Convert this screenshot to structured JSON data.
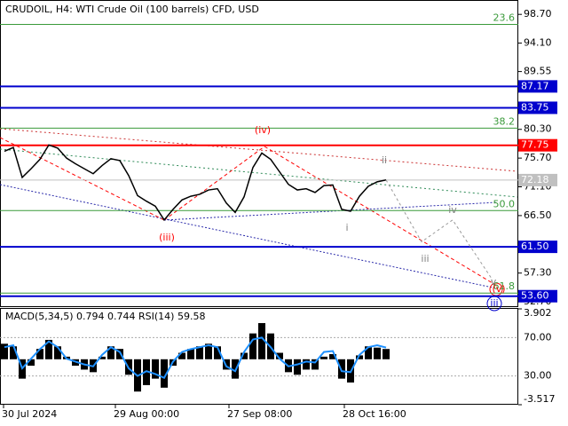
{
  "chart_data": {
    "type": "line",
    "title": "CRUDOIL, H4:  WTI Crude Oil (100 barrels) CFD, USD",
    "values": [
      76.8,
      77.4,
      72.6,
      74.0,
      75.5,
      77.8,
      77.3,
      75.7,
      74.8,
      74.0,
      73.2,
      74.5,
      75.6,
      75.3,
      72.9,
      69.7,
      68.8,
      68.0,
      65.8,
      67.5,
      69.0,
      69.6,
      69.9,
      70.6,
      70.8,
      68.5,
      67.0,
      69.5,
      74.2,
      76.5,
      75.5,
      73.5,
      71.5,
      70.6,
      70.8,
      70.2,
      71.3,
      71.4,
      67.5,
      67.2,
      69.6,
      71.2,
      71.9,
      72.2
    ],
    "color": "#000000",
    "projection": {
      "values": [
        72.2,
        62.3,
        65.8,
        56.2
      ],
      "color": "#999999"
    },
    "ylim": [
      52.0,
      101.0
    ],
    "yticks": [
      {
        "value": 98.7,
        "label": "98.70"
      },
      {
        "value": 94.1,
        "label": "94.10"
      },
      {
        "value": 89.55,
        "label": "89.55"
      },
      {
        "value": 80.3,
        "label": "80.30"
      },
      {
        "value": 75.7,
        "label": "75.70"
      },
      {
        "value": 71.1,
        "label": "71.10"
      },
      {
        "value": 66.5,
        "label": "66.50"
      },
      {
        "value": 57.3,
        "label": "57.30"
      },
      {
        "value": 52.7,
        "label": "52.70"
      }
    ],
    "levels": [
      {
        "value": 87.17,
        "label": "87.17",
        "color": "#0000cd"
      },
      {
        "value": 83.75,
        "label": "83.75",
        "color": "#0000cd"
      },
      {
        "value": 77.75,
        "label": "77.75",
        "color": "#ff0000"
      },
      {
        "value": 72.18,
        "label": "72.18",
        "color": "#c0c0c0"
      },
      {
        "value": 61.5,
        "label": "61.50",
        "color": "#0000cd"
      },
      {
        "value": 53.6,
        "label": "53.60",
        "color": "#0000cd"
      }
    ],
    "fib_levels": [
      {
        "ratio": "23.6",
        "price": 97.1
      },
      {
        "ratio": "38.2",
        "price": 80.5
      },
      {
        "ratio": "50.0",
        "price": 67.3
      },
      {
        "ratio": "61.8",
        "price": 54.1
      }
    ],
    "fib_color": "#3a9a3a",
    "annotations": [
      {
        "text": "(iv)",
        "color": "#ff0000"
      },
      {
        "text": "(iii)",
        "color": "#ff0000"
      },
      {
        "text": "ii",
        "color": "#808080"
      },
      {
        "text": "i",
        "color": "#808080"
      },
      {
        "text": "iv",
        "color": "#808080"
      },
      {
        "text": "iii",
        "color": "#808080"
      },
      {
        "text": "v",
        "color": "#808080"
      },
      {
        "text": "(v)",
        "color": "#ff0000"
      },
      {
        "text": "iii",
        "color": "#0000cd"
      }
    ],
    "x_labels": [
      "30 Jul 2024",
      "29 Aug 00:00",
      "27 Sep 08:00",
      "28 Oct 16:00"
    ],
    "indicator": {
      "label": "MACD(5,34,5) 0.794 0.744 RSI(14) 59.58",
      "macd": {
        "values": [
          1.2,
          1.0,
          -1.5,
          -0.5,
          0.8,
          1.5,
          1.0,
          0.2,
          -0.5,
          -0.8,
          -1.0,
          0.2,
          1.0,
          0.8,
          -1.2,
          -2.5,
          -2.0,
          -1.5,
          -2.2,
          -0.5,
          0.5,
          0.8,
          1.0,
          1.2,
          1.0,
          -0.8,
          -1.5,
          0.5,
          2.0,
          2.8,
          2.0,
          0.5,
          -1.0,
          -1.2,
          -0.8,
          -0.8,
          0.2,
          0.4,
          -1.5,
          -1.8,
          0.3,
          1.0,
          0.9,
          0.794
        ],
        "color": "#000000",
        "ylim": [
          -3.517,
          3.902
        ],
        "yticks": [
          3.902,
          -3.517
        ]
      },
      "rsi": {
        "values": [
          60,
          62,
          38,
          48,
          58,
          66,
          60,
          48,
          45,
          42,
          40,
          52,
          60,
          55,
          38,
          30,
          35,
          32,
          28,
          45,
          55,
          58,
          60,
          62,
          60,
          40,
          35,
          55,
          68,
          70,
          60,
          48,
          40,
          42,
          45,
          44,
          55,
          56,
          35,
          34,
          52,
          60,
          62,
          59.58
        ],
        "color": "#1e90ff",
        "ylim": [
          0,
          100
        ],
        "yticks": [
          {
            "value": 70,
            "label": "70.00"
          },
          {
            "value": 30,
            "label": "30.00"
          }
        ]
      }
    }
  }
}
